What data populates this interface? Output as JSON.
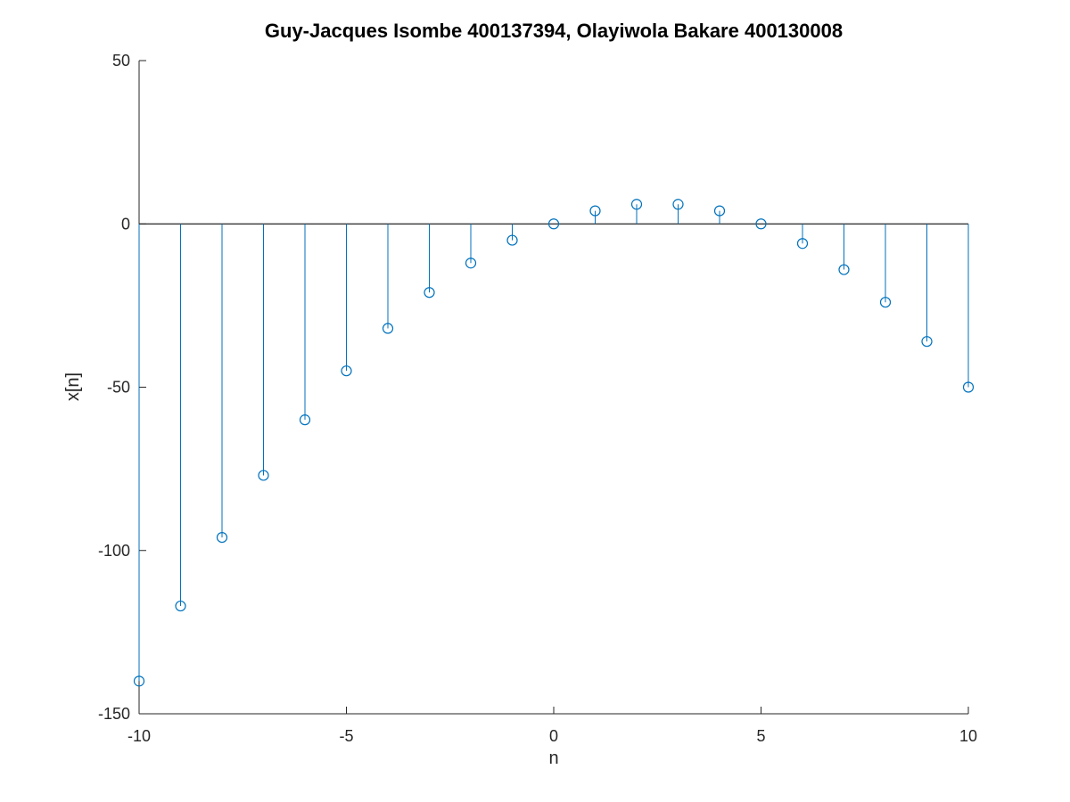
{
  "chart_data": {
    "type": "stem",
    "title": "Guy-Jacques Isombe 400137394, Olayiwola Bakare 400130008",
    "xlabel": "n",
    "ylabel": "x[n]",
    "xlim": [
      -10,
      10
    ],
    "ylim": [
      -150,
      50
    ],
    "xticks": [
      -10,
      -5,
      0,
      5,
      10
    ],
    "yticks": [
      -150,
      -100,
      -50,
      0,
      50
    ],
    "xtick_labels": [
      "-10",
      "-5",
      "0",
      "5",
      "10"
    ],
    "ytick_labels": [
      "-150",
      "-100",
      "-50",
      "0",
      "50"
    ],
    "grid": false,
    "legend": "none",
    "marker": "open-circle",
    "series": [
      {
        "color": "#0072bd",
        "x": [
          -10,
          -9,
          -8,
          -7,
          -6,
          -5,
          -4,
          -3,
          -2,
          -1,
          0,
          1,
          2,
          3,
          4,
          5,
          6,
          7,
          8,
          9,
          10
        ],
        "y": [
          -140,
          -117,
          -96,
          -77,
          -60,
          -45,
          -32,
          -21,
          -12,
          -5,
          0,
          4,
          6,
          6,
          4,
          0,
          -6,
          -14,
          -24,
          -36,
          -50
        ]
      }
    ]
  }
}
